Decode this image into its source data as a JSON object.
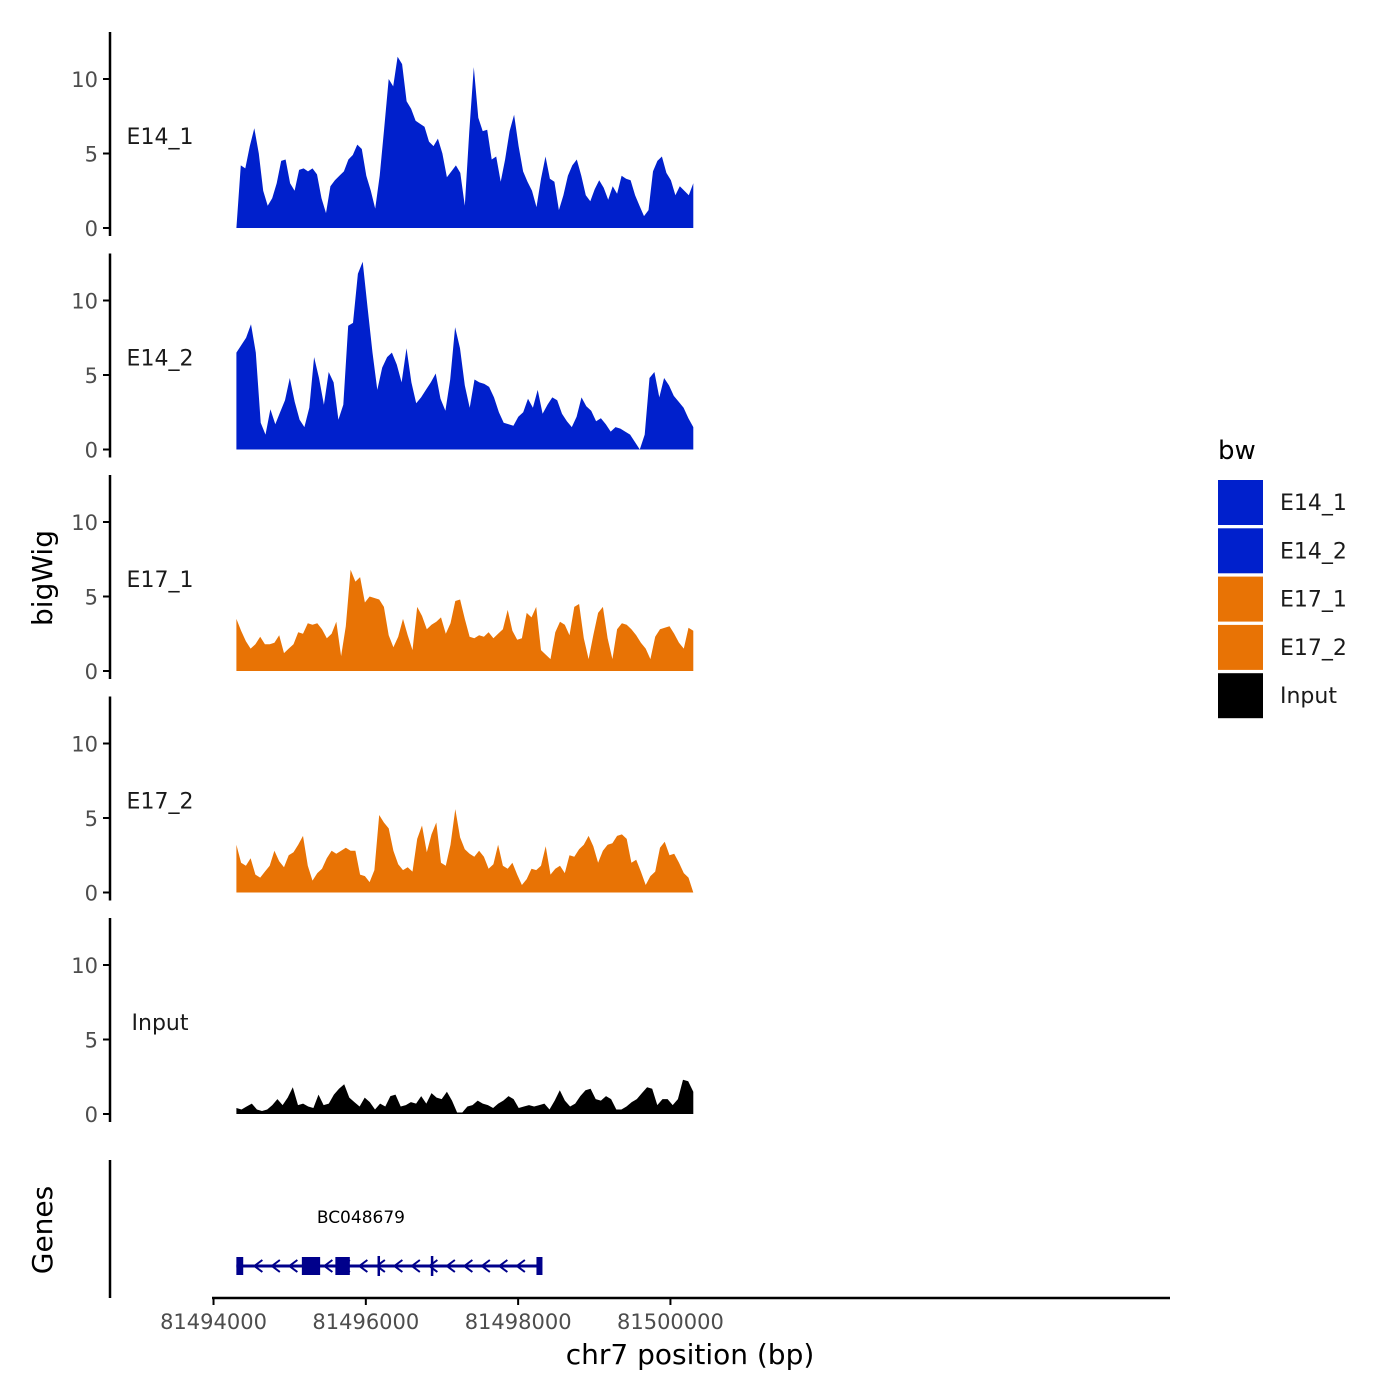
{
  "chart_data": {
    "type": "area",
    "layout": "stacked-tracks",
    "ylabel": "bigWig",
    "xlabel": "chr7 position (bp)",
    "ylim": [
      0,
      13
    ],
    "yticks": [
      0,
      5,
      10
    ],
    "x_range": [
      81494300,
      81500300
    ],
    "xlim": [
      81493980,
      81506560
    ],
    "xticks": [
      81494000,
      81496000,
      81498000,
      81500000
    ],
    "xtick_labels": [
      "81494000",
      "81496000",
      "81498000",
      "81500000"
    ],
    "legend_title": "bw",
    "legend": [
      {
        "label": "E14_1",
        "color": "#0020CC"
      },
      {
        "label": "E14_2",
        "color": "#0020CC"
      },
      {
        "label": "E17_1",
        "color": "#E87305"
      },
      {
        "label": "E17_2",
        "color": "#E87305"
      },
      {
        "label": "Input",
        "color": "#000000"
      }
    ],
    "series": [
      {
        "name": "E14_1",
        "color": "#0020CC",
        "values": [
          0,
          4.2,
          4,
          5.5,
          6.7,
          5,
          2.5,
          1.5,
          2,
          3,
          4.5,
          4.6,
          3,
          2.5,
          3.9,
          4,
          3.8,
          4,
          3.6,
          2,
          1,
          2.8,
          3.2,
          3.5,
          3.8,
          4.6,
          4.9,
          5.6,
          5.3,
          3.5,
          2.5,
          1.3,
          3.5,
          6.7,
          10,
          9.5,
          11.5,
          11,
          8.5,
          8,
          7.2,
          7,
          6.8,
          5.8,
          5.5,
          6,
          5,
          3.4,
          3.8,
          4.2,
          3.7,
          1.5,
          6.5,
          10.8,
          7.4,
          6.5,
          6.6,
          4.6,
          4.8,
          3.1,
          4.6,
          6.5,
          7.6,
          5.5,
          3.8,
          3.1,
          2.5,
          1.4,
          3.3,
          4.8,
          3.3,
          3.1,
          1.2,
          2.2,
          3.5,
          4.2,
          4.6,
          3.5,
          2.2,
          1.8,
          2.6,
          3.2,
          2.7,
          1.9,
          2.8,
          2.3,
          3.5,
          3.3,
          3.2,
          2.2,
          1.5,
          0.8,
          1.2,
          3.8,
          4.5,
          4.8,
          3.7,
          3.2,
          2.2,
          2.8,
          2.5,
          2.2,
          3
        ]
      },
      {
        "name": "E14_2",
        "color": "#0020CC",
        "values": [
          6.5,
          7,
          7.5,
          8.4,
          6.5,
          1.8,
          1,
          2.7,
          1.7,
          2.5,
          3.3,
          4.8,
          3.2,
          2,
          1.5,
          2.8,
          6.2,
          4.8,
          3,
          5.2,
          4.5,
          2,
          3,
          8.3,
          8.5,
          11.8,
          12.6,
          9.5,
          6.5,
          4,
          5.5,
          6.2,
          6.5,
          5.7,
          4.5,
          6.8,
          4.5,
          3.1,
          3.5,
          4,
          4.5,
          5.1,
          3.4,
          2.6,
          4.7,
          8.2,
          6.8,
          4.3,
          2.8,
          4.7,
          4.5,
          4.4,
          4.2,
          3.5,
          2.5,
          1.8,
          1.7,
          1.6,
          2.2,
          2.5,
          3.4,
          2.8,
          4,
          2.4,
          3,
          3.5,
          3.3,
          2.4,
          1.9,
          1.5,
          2.2,
          3.5,
          2.9,
          2.6,
          1.9,
          2.1,
          1.7,
          1.2,
          1.5,
          1.4,
          1.2,
          1,
          0.5,
          0,
          1,
          4.8,
          5.2,
          3.5,
          4.8,
          4.3,
          3.6,
          3.2,
          2.8,
          2.1,
          1.5
        ]
      },
      {
        "name": "E17_1",
        "color": "#E87305",
        "values": [
          3.5,
          2.7,
          2,
          1.5,
          1.8,
          2.3,
          1.8,
          1.8,
          1.9,
          2.4,
          1.2,
          1.5,
          1.8,
          2.6,
          2.5,
          3.2,
          3.1,
          3.2,
          2.8,
          2.2,
          2.5,
          3.3,
          1,
          3,
          6.8,
          6,
          6.3,
          4.6,
          5,
          4.9,
          4.8,
          4.3,
          2.4,
          1.6,
          2.3,
          3.5,
          2.4,
          1.4,
          4.3,
          3.7,
          2.8,
          3.1,
          3.3,
          3.6,
          2.5,
          3.2,
          4.7,
          4.8,
          3.5,
          2.3,
          2.2,
          2.4,
          2.3,
          2.6,
          2.2,
          2.5,
          2.8,
          4.1,
          2.7,
          2.1,
          2.2,
          3.9,
          3.6,
          4.3,
          1.4,
          1.1,
          0.8,
          2.6,
          3.3,
          3.1,
          2.4,
          4.3,
          4.5,
          2.2,
          0.8,
          2.4,
          3.9,
          4.3,
          2.2,
          0.8,
          2.8,
          3.2,
          3.1,
          2.8,
          2.4,
          1.9,
          1.5,
          0.8,
          2.3,
          2.8,
          2.9,
          3,
          2.5,
          1.9,
          1.5,
          2.9,
          2.7
        ]
      },
      {
        "name": "E17_2",
        "color": "#E87305",
        "values": [
          3.2,
          2,
          1.8,
          2.3,
          1.2,
          1,
          1.4,
          1.8,
          2.8,
          2.1,
          1.7,
          2.5,
          2.7,
          3.2,
          3.8,
          1.8,
          0.8,
          1.3,
          1.6,
          2.3,
          2.8,
          2.6,
          2.8,
          3,
          2.8,
          2.8,
          1.2,
          1.1,
          0.7,
          1.5,
          5.2,
          4.7,
          4.3,
          2.8,
          1.9,
          1.5,
          1.7,
          1.4,
          3.6,
          4.5,
          2.7,
          3.9,
          4.7,
          2,
          1.8,
          3.2,
          5.6,
          3.7,
          2.9,
          2.6,
          2.4,
          2.8,
          2.4,
          1.6,
          1.9,
          3.2,
          1.8,
          1.6,
          2,
          1.2,
          0.5,
          0.9,
          1.6,
          1.5,
          1.8,
          3.1,
          1.2,
          1.6,
          1.8,
          1.3,
          2.5,
          2.4,
          2.9,
          3.2,
          3.8,
          3.1,
          2,
          2.8,
          3.2,
          3.3,
          3.8,
          3.9,
          3.6,
          2,
          2.2,
          1.4,
          0.5,
          1.1,
          1.4,
          3,
          3.4,
          2.5,
          2.6,
          2,
          1.3,
          1,
          0
        ]
      },
      {
        "name": "Input",
        "color": "#000000",
        "values": [
          0.4,
          0.3,
          0.5,
          0.7,
          0.3,
          0.2,
          0.3,
          0.6,
          1,
          0.6,
          1.1,
          1.8,
          0.6,
          0.7,
          0.5,
          0.4,
          1.3,
          0.6,
          0.7,
          1.3,
          1.7,
          2,
          1.1,
          0.8,
          0.5,
          1.1,
          0.8,
          0.3,
          0.7,
          0.5,
          1.2,
          1.3,
          0.5,
          0.6,
          0.8,
          0.7,
          1.2,
          0.7,
          1.4,
          1.1,
          1,
          1.5,
          0.9,
          0.1,
          0.1,
          0.5,
          0.6,
          0.9,
          0.7,
          0.6,
          0.4,
          0.7,
          0.9,
          1.2,
          1,
          0.4,
          0.5,
          0.6,
          0.5,
          0.6,
          0.7,
          0.3,
          0.9,
          1.6,
          0.9,
          0.5,
          0.7,
          1.2,
          1.6,
          1.7,
          1,
          0.9,
          1.2,
          1,
          0.3,
          0.3,
          0.5,
          0.8,
          1,
          1.4,
          1.8,
          1.7,
          0.6,
          1,
          1,
          0.6,
          1,
          2.3,
          2.2,
          1.5
        ]
      }
    ],
    "genes": [
      {
        "name": "BC048679",
        "strand": "-",
        "start": 81494300,
        "end": 81498280,
        "exons": [
          [
            81494300,
            81494390
          ],
          [
            81495160,
            81495400
          ],
          [
            81495600,
            81495790
          ]
        ],
        "intron_marks": [
          81496170,
          81496870
        ]
      }
    ],
    "genes_track_label": "Genes"
  }
}
